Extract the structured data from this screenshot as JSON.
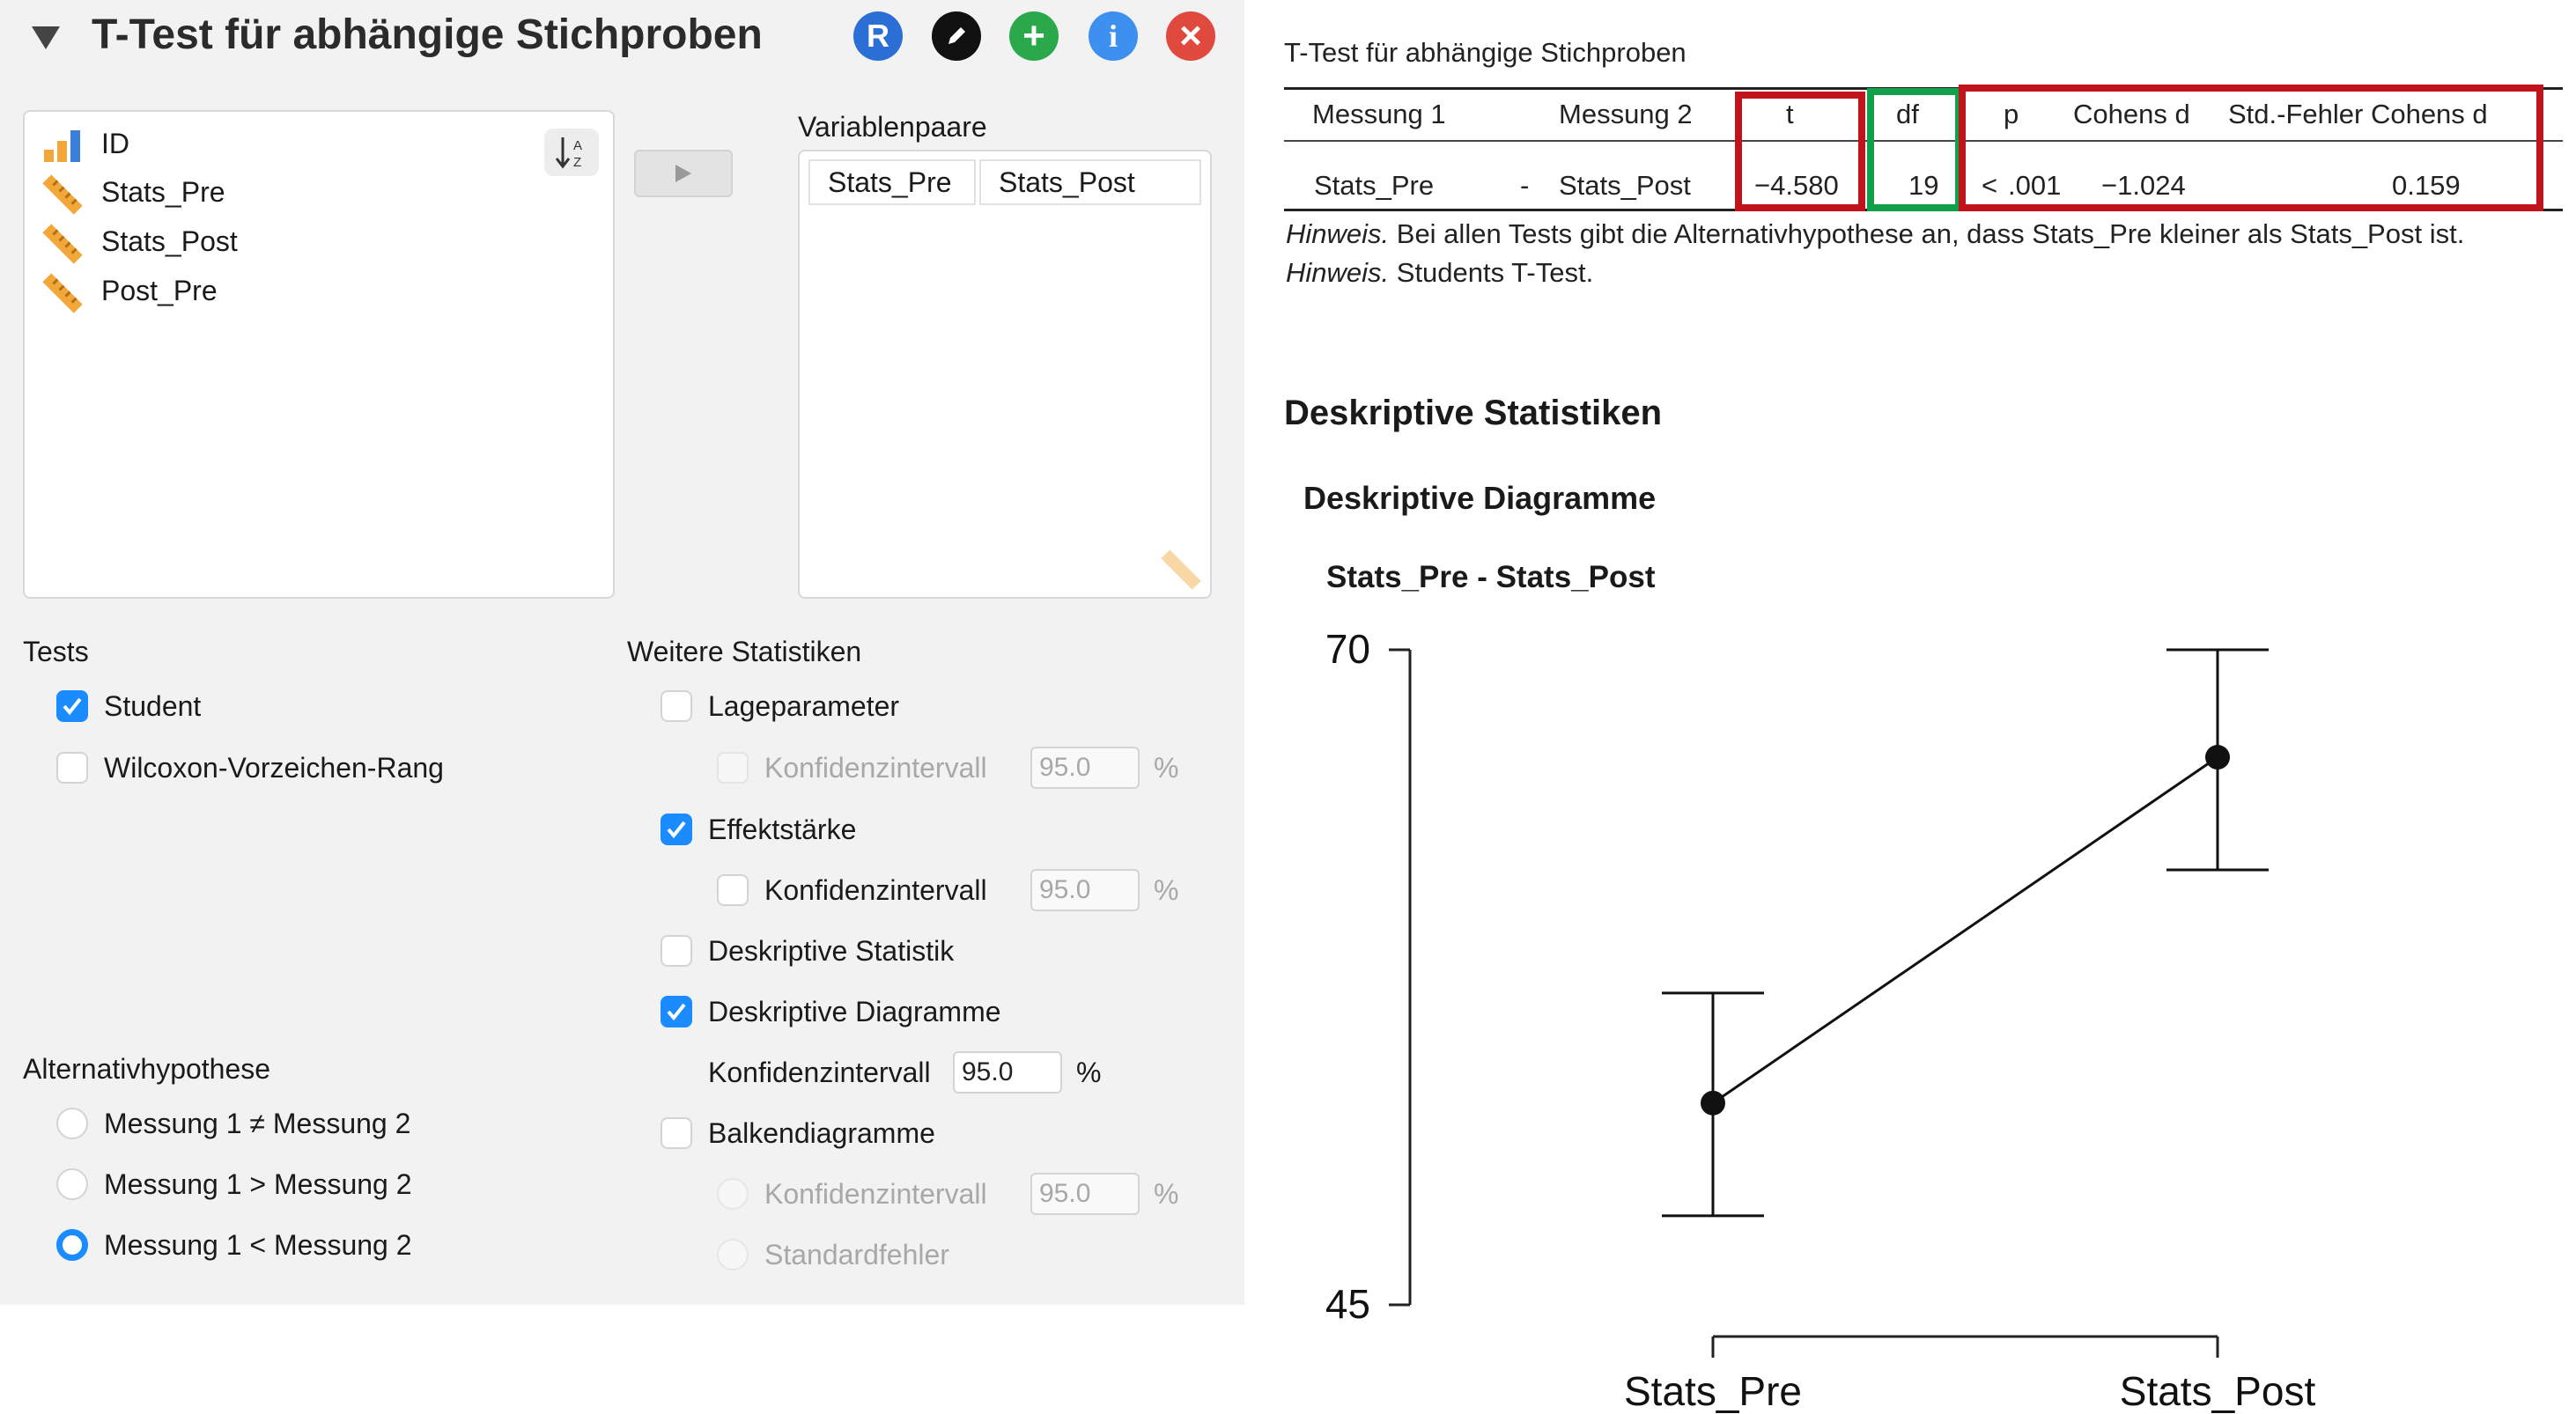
{
  "dialog": {
    "title": "T-Test für abhängige Stichproben",
    "icons": [
      {
        "name": "r-syntax-icon",
        "glyph": "R",
        "color": "#2a6ed6"
      },
      {
        "name": "edit-icon",
        "glyph": "✎",
        "color": "#111111"
      },
      {
        "name": "add-icon",
        "glyph": "+",
        "color": "#2aa84a"
      },
      {
        "name": "info-icon",
        "glyph": "i",
        "color": "#3d8ff0"
      },
      {
        "name": "close-icon",
        "glyph": "×",
        "color": "#e0493e"
      }
    ],
    "variables": [
      "ID",
      "Stats_Pre",
      "Stats_Post",
      "Post_Pre"
    ],
    "pairs_label": "Variablenpaare",
    "pair": {
      "m1": "Stats_Pre",
      "m2": "Stats_Post"
    },
    "tests": {
      "label": "Tests",
      "student": "Student",
      "wilcoxon": "Wilcoxon-Vorzeichen-Rang"
    },
    "further": {
      "label": "Weitere Statistiken",
      "location": "Lageparameter",
      "ci": "Konfidenzintervall",
      "effect": "Effektstärke",
      "desc_stat": "Deskriptive Statistik",
      "desc_plots": "Deskriptive Diagramme",
      "bar_plots": "Balkendiagramme",
      "std_error": "Standardfehler",
      "ci_value": "95.0",
      "percent": "%"
    },
    "alternative": {
      "label": "Alternativhypothese",
      "neq": "Messung 1 ≠ Messung 2",
      "gt": "Messung 1 > Messung 2",
      "lt": "Messung 1 < Messung 2"
    }
  },
  "results": {
    "table_title": "T-Test für abhängige Stichproben",
    "columns": [
      "Messung 1",
      "Messung 2",
      "t",
      "df",
      "p",
      "Cohens d",
      "Std.-Fehler Cohens d"
    ],
    "row": {
      "m1": "Stats_Pre",
      "sep": "-",
      "m2": "Stats_Post",
      "t": "−4.580",
      "df": "19",
      "p_sign": "<",
      "p": ".001",
      "d": "−1.024",
      "se": "0.159"
    },
    "note_label": "Hinweis.",
    "note1": " Bei allen Tests gibt die Alternativhypothese an, dass Stats_Pre kleiner als Stats_Post ist.",
    "note2": " Students T-Test.",
    "section": "Deskriptive Statistiken",
    "subsection": "Deskriptive Diagramme",
    "plot_title": "Stats_Pre - Stats_Post",
    "highlight_colors": {
      "red": "#c0141c",
      "green": "#13a04a"
    }
  },
  "chart_data": {
    "type": "line",
    "categories": [
      "Stats_Pre",
      "Stats_Post"
    ],
    "ylim": [
      45,
      70
    ],
    "ytick_labels": [
      "70",
      "45"
    ],
    "series": [
      {
        "values": [
          52.7,
          65.9
        ],
        "ci_lower": [
          48.4,
          61.6
        ],
        "ci_upper": [
          56.9,
          70.0
        ]
      }
    ]
  }
}
